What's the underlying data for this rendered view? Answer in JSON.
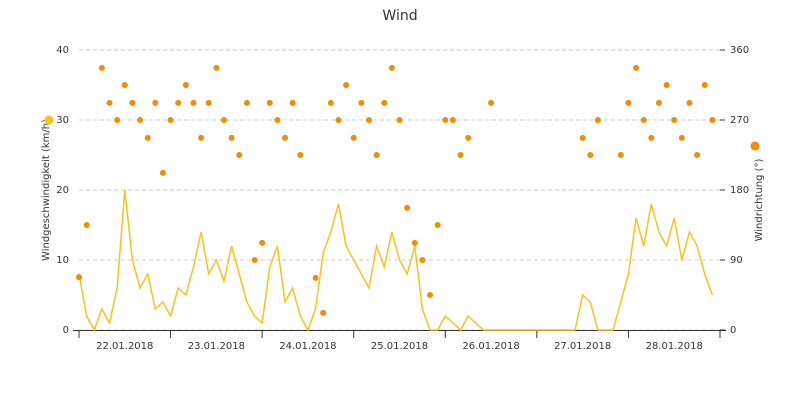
{
  "chart_data": {
    "type": "line",
    "title": "Wind",
    "y_label": "Windgeschwindigkeit (km/h)",
    "y2_label": "Windrichtung (°)",
    "categories": [
      "22.01.2018",
      "23.01.2018",
      "24.01.2018",
      "25.01.2018",
      "26.01.2018",
      "27.01.2018",
      "28.01.2018"
    ],
    "x": [
      0,
      2,
      4,
      6,
      8,
      10,
      12,
      14,
      16,
      18,
      20,
      22,
      24,
      26,
      28,
      30,
      32,
      34,
      36,
      38,
      40,
      42,
      44,
      46,
      48,
      50,
      52,
      54,
      56,
      58,
      60,
      62,
      64,
      66,
      68,
      70,
      72,
      74,
      76,
      78,
      80,
      82,
      84,
      86,
      88,
      90,
      92,
      94,
      96,
      98,
      100,
      102,
      104,
      106,
      108,
      110,
      112,
      114,
      116,
      118,
      120,
      122,
      124,
      126,
      128,
      130,
      132,
      134,
      136,
      138,
      140,
      142,
      144,
      146,
      148,
      150,
      152,
      154,
      156,
      158,
      160,
      162,
      164,
      166
    ],
    "xlim": [
      0,
      168
    ],
    "ylim": [
      0,
      40
    ],
    "yticks": [
      0,
      10,
      20,
      30,
      40
    ],
    "y2lim": [
      0,
      360
    ],
    "y2ticks": [
      0,
      90,
      180,
      270,
      360
    ],
    "grid": true,
    "series": [
      {
        "name": "Windgeschwindigkeit",
        "type": "line",
        "color": "#f7c31c",
        "values": [
          8,
          2,
          0,
          3,
          1,
          6,
          20,
          10,
          6,
          8,
          3,
          4,
          2,
          6,
          5,
          9,
          14,
          8,
          10,
          7,
          12,
          8,
          4,
          2,
          1,
          9,
          12,
          4,
          6,
          2,
          0,
          3,
          11,
          14,
          18,
          12,
          10,
          8,
          6,
          12,
          9,
          14,
          10,
          8,
          12,
          3,
          0,
          0,
          2,
          1,
          0,
          2,
          1,
          0,
          0,
          0,
          0,
          0,
          0,
          0,
          0,
          0,
          0,
          0,
          0,
          0,
          5,
          4,
          0,
          0,
          0,
          4,
          8,
          16,
          12,
          18,
          14,
          12,
          16,
          10,
          14,
          12,
          8,
          5
        ]
      },
      {
        "name": "Windrichtung",
        "type": "scatter",
        "axis": "y2",
        "color": "#f28c00",
        "values": [
          68,
          135,
          null,
          337,
          292,
          270,
          315,
          292,
          270,
          247,
          292,
          202,
          270,
          292,
          315,
          292,
          247,
          292,
          337,
          270,
          247,
          225,
          292,
          90,
          112,
          292,
          270,
          247,
          292,
          225,
          null,
          67,
          22,
          292,
          270,
          315,
          247,
          292,
          270,
          225,
          292,
          337,
          270,
          157,
          112,
          90,
          45,
          135,
          270,
          270,
          225,
          247,
          null,
          null,
          292,
          null,
          null,
          null,
          null,
          null,
          null,
          null,
          null,
          null,
          null,
          null,
          247,
          225,
          270,
          null,
          null,
          225,
          292,
          337,
          270,
          247,
          292,
          315,
          270,
          247,
          292,
          225,
          315,
          270
        ]
      }
    ]
  }
}
